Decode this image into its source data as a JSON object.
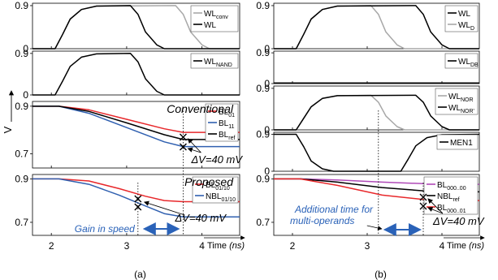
{
  "chart_data": [
    {
      "type": "line",
      "panel": "(a)",
      "caption": "(a)",
      "xlim": [
        1.75,
        4.5
      ],
      "x_ticks": [
        2,
        3,
        4
      ],
      "xlabel": "Time",
      "xunit": "(ns)",
      "ylabel": "V",
      "subplots": [
        {
          "ylim": [
            0,
            0.95
          ],
          "y_ticks": [
            0,
            0.9
          ],
          "title": "",
          "legend": [
            "WL_conv",
            "WL"
          ],
          "series": [
            {
              "name": "WL_conv",
              "color": "#a8a8a8",
              "x": [
                1.75,
                2.05,
                2.15,
                2.25,
                2.4,
                2.6,
                3.65,
                3.75,
                3.85,
                4.0,
                4.1,
                4.5
              ],
              "y": [
                0,
                0,
                0.3,
                0.62,
                0.82,
                0.89,
                0.9,
                0.72,
                0.35,
                0.08,
                0,
                0
              ]
            },
            {
              "name": "WL",
              "color": "#000000",
              "x": [
                1.75,
                2.05,
                2.15,
                2.25,
                2.4,
                2.6,
                3.05,
                3.15,
                3.25,
                3.4,
                3.5,
                4.5
              ],
              "y": [
                0,
                0,
                0.3,
                0.62,
                0.82,
                0.89,
                0.9,
                0.72,
                0.35,
                0.08,
                0,
                0
              ]
            }
          ]
        },
        {
          "ylim": [
            0,
            0.95
          ],
          "y_ticks": [
            0,
            0.9
          ],
          "title": "",
          "legend": [
            "WL_NAND"
          ],
          "series": [
            {
              "name": "WL_NAND",
              "color": "#000000",
              "x": [
                1.75,
                2.05,
                2.15,
                2.25,
                2.4,
                2.6,
                3.05,
                3.15,
                3.25,
                3.4,
                3.5,
                4.5
              ],
              "y": [
                0,
                0,
                0.3,
                0.62,
                0.82,
                0.89,
                0.9,
                0.72,
                0.35,
                0.08,
                0,
                0
              ]
            }
          ]
        },
        {
          "ylim": [
            0.64,
            0.92
          ],
          "y_ticks": [
            0.7,
            0.9
          ],
          "title": "Conventional",
          "legend": [
            "BL_01",
            "BL_11",
            "BL_ref"
          ],
          "series": [
            {
              "name": "BL_01",
              "color": "#e8282b",
              "x": [
                1.75,
                2.1,
                2.5,
                3.0,
                3.5,
                3.75,
                4.5
              ],
              "y": [
                0.9,
                0.9,
                0.885,
                0.845,
                0.805,
                0.79,
                0.79
              ]
            },
            {
              "name": "BL_11",
              "color": "#3060b0",
              "x": [
                1.75,
                2.1,
                2.5,
                3.0,
                3.5,
                3.75,
                4.5
              ],
              "y": [
                0.9,
                0.9,
                0.87,
                0.81,
                0.75,
                0.73,
                0.73
              ]
            },
            {
              "name": "BL_ref",
              "color": "#000000",
              "x": [
                1.75,
                2.1,
                2.5,
                3.0,
                3.5,
                3.75,
                4.5
              ],
              "y": [
                0.9,
                0.9,
                0.878,
                0.83,
                0.78,
                0.76,
                0.76
              ]
            }
          ],
          "annotations": [
            {
              "text": "ΔV=40 mV"
            }
          ]
        },
        {
          "ylim": [
            0.64,
            0.92
          ],
          "y_ticks": [
            0.7,
            0.9
          ],
          "title": "Proposed",
          "legend": [
            "BL_01/10",
            "NBL_01/10"
          ],
          "series": [
            {
              "name": "BL_01/10",
              "color": "#e8282b",
              "x": [
                1.75,
                2.1,
                2.5,
                2.9,
                3.25,
                3.5,
                3.75,
                4.5
              ],
              "y": [
                0.9,
                0.9,
                0.89,
                0.855,
                0.82,
                0.8,
                0.795,
                0.795
              ]
            },
            {
              "name": "NBL_01/10",
              "color": "#3060b0",
              "x": [
                1.75,
                2.1,
                2.5,
                2.9,
                3.25,
                3.5,
                3.75,
                4.5
              ],
              "y": [
                0.9,
                0.9,
                0.875,
                0.825,
                0.775,
                0.74,
                0.725,
                0.725
              ]
            }
          ],
          "annotations": [
            {
              "text": "ΔV=40 mV"
            },
            {
              "text": "Gain in speed"
            }
          ]
        }
      ]
    },
    {
      "type": "line",
      "panel": "(b)",
      "caption": "(b)",
      "xlim": [
        1.75,
        4.5
      ],
      "x_ticks": [
        2,
        3,
        4
      ],
      "xlabel": "Time",
      "xunit": "(ns)",
      "ylabel": "",
      "subplots": [
        {
          "ylim": [
            0,
            0.95
          ],
          "y_ticks": [
            0,
            0.9
          ],
          "title": "",
          "legend": [
            "WL",
            "WL_D"
          ],
          "series": [
            {
              "name": "WL_D",
              "color": "#a8a8a8",
              "x": [
                1.75,
                2.05,
                2.15,
                2.25,
                2.4,
                2.6,
                3.05,
                3.15,
                3.25,
                3.4,
                3.5,
                4.5
              ],
              "y": [
                0,
                0,
                0.3,
                0.62,
                0.82,
                0.89,
                0.9,
                0.72,
                0.35,
                0.08,
                0,
                0
              ]
            },
            {
              "name": "WL",
              "color": "#000000",
              "x": [
                1.75,
                2.05,
                2.15,
                2.25,
                2.4,
                2.6,
                3.65,
                3.75,
                3.85,
                4.0,
                4.1,
                4.5
              ],
              "y": [
                0,
                0,
                0.3,
                0.62,
                0.82,
                0.89,
                0.9,
                0.72,
                0.35,
                0.08,
                0,
                0
              ]
            }
          ]
        },
        {
          "ylim": [
            0,
            0.95
          ],
          "y_ticks": [
            0,
            0.9
          ],
          "title": "",
          "legend": [
            "WL_DB"
          ],
          "series": [
            {
              "name": "WL_DB",
              "color": "#000000",
              "x": [
                1.75,
                4.5
              ],
              "y": [
                0.02,
                0.02
              ]
            }
          ]
        },
        {
          "ylim": [
            0,
            0.95
          ],
          "y_ticks": [
            0,
            0.9
          ],
          "title": "",
          "legend": [
            "WL_NOR",
            "WL_NOR'"
          ],
          "series": [
            {
              "name": "WL_NOR",
              "color": "#a8a8a8",
              "x": [
                1.75,
                2.05,
                2.15,
                2.25,
                2.4,
                2.6,
                3.05,
                3.15,
                3.25,
                3.4,
                3.5,
                4.5
              ],
              "y": [
                0,
                0,
                0.25,
                0.5,
                0.68,
                0.74,
                0.75,
                0.6,
                0.3,
                0.07,
                0,
                0
              ]
            },
            {
              "name": "WL_NOR'",
              "color": "#000000",
              "x": [
                1.75,
                2.05,
                2.15,
                2.25,
                2.4,
                2.6,
                3.65,
                3.75,
                3.85,
                4.0,
                4.1,
                4.5
              ],
              "y": [
                0,
                0,
                0.25,
                0.5,
                0.68,
                0.74,
                0.75,
                0.6,
                0.3,
                0.07,
                0,
                0
              ]
            }
          ]
        },
        {
          "ylim": [
            0,
            0.95
          ],
          "y_ticks": [
            0,
            0.9
          ],
          "title": "",
          "legend": [
            "MEN1"
          ],
          "series": [
            {
              "name": "MEN1",
              "color": "#000000",
              "x": [
                1.75,
                2.05,
                2.15,
                2.25,
                2.4,
                2.55,
                3.45,
                3.55,
                3.65,
                3.8,
                4.0,
                4.5
              ],
              "y": [
                0.9,
                0.9,
                0.6,
                0.25,
                0.06,
                0,
                0,
                0.3,
                0.62,
                0.82,
                0.89,
                0.9
              ]
            }
          ]
        },
        {
          "ylim": [
            0.64,
            0.92
          ],
          "y_ticks": [
            0.7,
            0.9
          ],
          "title": "",
          "legend": [
            "BL_000..00",
            "NBL_ref",
            "BL_000..01"
          ],
          "series": [
            {
              "name": "BL_000..00",
              "color": "#b04ab8",
              "x": [
                1.75,
                2.1,
                2.6,
                3.2,
                3.75,
                4.5
              ],
              "y": [
                0.9,
                0.9,
                0.895,
                0.885,
                0.878,
                0.875
              ]
            },
            {
              "name": "NBL_ref",
              "color": "#000000",
              "x": [
                1.75,
                2.1,
                2.6,
                3.2,
                3.75,
                4.5
              ],
              "y": [
                0.9,
                0.9,
                0.885,
                0.86,
                0.845,
                0.84
              ]
            },
            {
              "name": "BL_000..01",
              "color": "#e8282b",
              "x": [
                1.75,
                2.1,
                2.6,
                3.2,
                3.75,
                4.5
              ],
              "y": [
                0.9,
                0.9,
                0.87,
                0.825,
                0.805,
                0.8
              ]
            }
          ],
          "annotations": [
            {
              "text": "ΔV=40 mV"
            },
            {
              "text": "Additional time for"
            },
            {
              "text": "multi-operands"
            }
          ]
        }
      ]
    }
  ]
}
